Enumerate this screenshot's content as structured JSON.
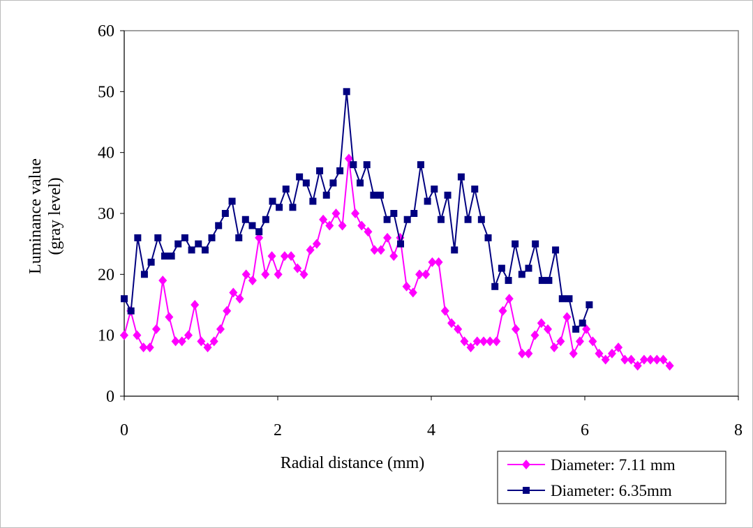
{
  "chart_data": {
    "type": "line",
    "xlabel": "Radial distance (mm)",
    "ylabel": [
      "Luminance value",
      "(gray level)"
    ],
    "xlim": [
      0,
      8
    ],
    "xticks": [
      0,
      2,
      4,
      6,
      8
    ],
    "ylim": [
      0,
      60
    ],
    "yticks": [
      0,
      10,
      20,
      30,
      40,
      50,
      60
    ],
    "legend": "lower right",
    "series": [
      {
        "name": "Diameter: 7.11 mm",
        "color": "#ff00ff",
        "marker": "diamond",
        "x": [
          0,
          0.084,
          0.167,
          0.251,
          0.334,
          0.418,
          0.502,
          0.585,
          0.669,
          0.752,
          0.836,
          0.92,
          1.003,
          1.087,
          1.17,
          1.254,
          1.338,
          1.421,
          1.505,
          1.588,
          1.672,
          1.756,
          1.839,
          1.923,
          2.006,
          2.09,
          2.174,
          2.257,
          2.341,
          2.424,
          2.508,
          2.592,
          2.675,
          2.759,
          2.842,
          2.926,
          3.01,
          3.093,
          3.177,
          3.26,
          3.344,
          3.428,
          3.511,
          3.595,
          3.678,
          3.762,
          3.846,
          3.929,
          4.013,
          4.096,
          4.18,
          4.264,
          4.347,
          4.431,
          4.514,
          4.598,
          4.682,
          4.765,
          4.849,
          4.932,
          5.016,
          5.1,
          5.183,
          5.267,
          5.35,
          5.434,
          5.518,
          5.601,
          5.685,
          5.768,
          5.852,
          5.936,
          6.019,
          6.103,
          6.186,
          6.27,
          6.354,
          6.437,
          6.521,
          6.604,
          6.688,
          6.772,
          6.855,
          6.939,
          7.022,
          7.106
        ],
        "values": [
          10,
          14,
          10,
          8,
          8,
          11,
          19,
          13,
          9,
          9,
          10,
          15,
          9,
          8,
          9,
          11,
          14,
          17,
          16,
          20,
          19,
          26,
          20,
          23,
          20,
          23,
          23,
          21,
          20,
          24,
          25,
          29,
          28,
          30,
          28,
          39,
          30,
          28,
          27,
          24,
          24,
          26,
          23,
          26,
          18,
          17,
          20,
          20,
          22,
          22,
          14,
          12,
          11,
          9,
          8,
          9,
          9,
          9,
          9,
          14,
          16,
          11,
          7,
          7,
          10,
          12,
          11,
          8,
          9,
          13,
          7,
          9,
          11,
          9,
          7,
          6,
          7,
          8,
          6,
          6,
          5,
          6,
          6,
          6,
          6,
          5
        ]
      },
      {
        "name": "Diameter: 6.35mm",
        "color": "#000080",
        "marker": "square",
        "x": [
          0,
          0.088,
          0.176,
          0.263,
          0.351,
          0.439,
          0.527,
          0.615,
          0.702,
          0.79,
          0.878,
          0.966,
          1.054,
          1.141,
          1.229,
          1.317,
          1.405,
          1.493,
          1.58,
          1.668,
          1.756,
          1.844,
          1.932,
          2.019,
          2.107,
          2.195,
          2.283,
          2.371,
          2.458,
          2.546,
          2.634,
          2.722,
          2.81,
          2.897,
          2.985,
          3.073,
          3.161,
          3.249,
          3.336,
          3.424,
          3.512,
          3.6,
          3.688,
          3.775,
          3.863,
          3.951,
          4.039,
          4.127,
          4.214,
          4.302,
          4.39,
          4.478,
          4.566,
          4.653,
          4.741,
          4.829,
          4.917,
          5.005,
          5.092,
          5.18,
          5.268,
          5.356,
          5.444,
          5.531,
          5.619,
          5.707,
          5.795,
          5.883,
          5.97,
          6.058
        ],
        "values": [
          16,
          14,
          26,
          20,
          22,
          26,
          23,
          23,
          25,
          26,
          24,
          25,
          24,
          26,
          28,
          30,
          32,
          26,
          29,
          28,
          27,
          29,
          32,
          31,
          34,
          31,
          36,
          35,
          32,
          37,
          33,
          35,
          37,
          50,
          38,
          35,
          38,
          33,
          33,
          29,
          30,
          25,
          29,
          30,
          38,
          32,
          34,
          29,
          33,
          24,
          36,
          29,
          34,
          29,
          26,
          18,
          21,
          19,
          25,
          20,
          21,
          25,
          19,
          19,
          24,
          16,
          16,
          11,
          12,
          15
        ]
      }
    ]
  }
}
